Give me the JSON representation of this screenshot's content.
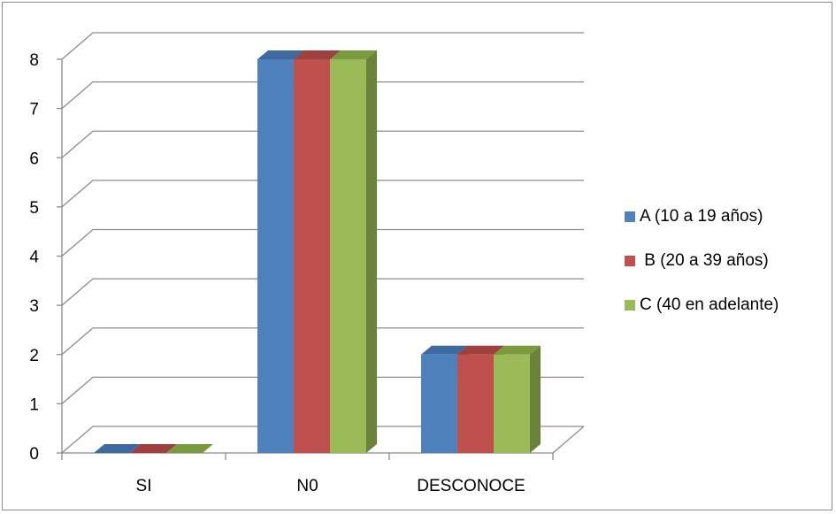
{
  "chart_data": {
    "type": "bar",
    "categories": [
      "SI",
      "N0",
      "DESCONOCE"
    ],
    "series": [
      {
        "name": "A (10 a 19 años)",
        "values": [
          0,
          8,
          2
        ],
        "color": "#4F81BD",
        "side_color": "#385D8A",
        "top_color": "#3F6AA0"
      },
      {
        "name": " B (20 a 39 años)",
        "values": [
          0,
          8,
          2
        ],
        "color": "#C0504D",
        "side_color": "#8C3836",
        "top_color": "#9E403D"
      },
      {
        "name": "C (40 en adelante)",
        "values": [
          0,
          8,
          2
        ],
        "color": "#9BBB59",
        "side_color": "#6A8239",
        "top_color": "#7A9A3F"
      }
    ],
    "yticks": [
      "0",
      "1",
      "2",
      "3",
      "4",
      "5",
      "6",
      "7",
      "8"
    ],
    "ylim": [
      0,
      8
    ],
    "grid": true,
    "legend_position": "right"
  }
}
